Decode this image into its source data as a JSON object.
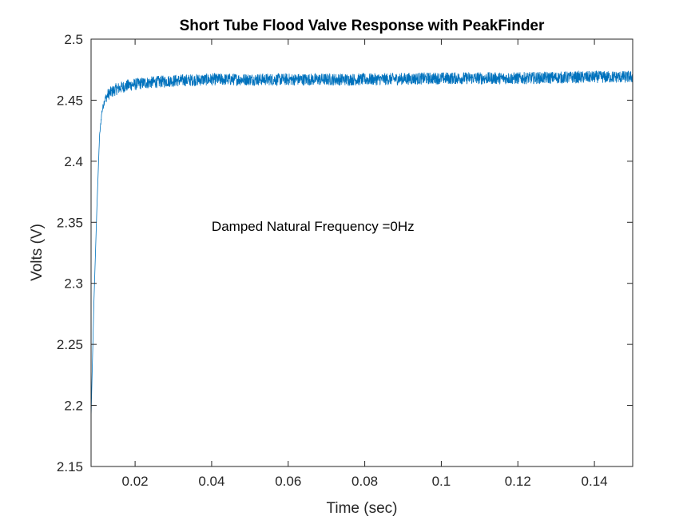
{
  "chart_data": {
    "type": "line",
    "title": "Short Tube Flood Valve Response with PeakFinder",
    "xlabel": "Time (sec)",
    "ylabel": "Volts (V)",
    "xlim": [
      0.0085,
      0.15
    ],
    "ylim": [
      2.15,
      2.5
    ],
    "xticks": [
      0.02,
      0.04,
      0.06,
      0.08,
      0.1,
      0.12,
      0.14
    ],
    "xtick_labels": [
      "0.02",
      "0.04",
      "0.06",
      "0.08",
      "0.1",
      "0.12",
      "0.14"
    ],
    "yticks": [
      2.15,
      2.2,
      2.25,
      2.3,
      2.35,
      2.4,
      2.45,
      2.5
    ],
    "ytick_labels": [
      "2.15",
      "2.2",
      "2.25",
      "2.3",
      "2.35",
      "2.4",
      "2.45",
      "2.5"
    ],
    "grid": false,
    "legend": "none",
    "annotation": {
      "text": "Damped Natural Frequency =0Hz",
      "x": 0.04,
      "y": 2.347
    },
    "series": [
      {
        "color": "#0072BD",
        "x": [
          0.0085,
          0.0092,
          0.01,
          0.0107,
          0.0113,
          0.012,
          0.013,
          0.015,
          0.018,
          0.022,
          0.03,
          0.04,
          0.06,
          0.08,
          0.1,
          0.12,
          0.14,
          0.15
        ],
        "y": [
          2.19,
          2.28,
          2.36,
          2.42,
          2.44,
          2.45,
          2.455,
          2.459,
          2.462,
          2.464,
          2.466,
          2.467,
          2.467,
          2.467,
          2.468,
          2.468,
          2.469,
          2.469
        ],
        "noise_amplitude": 0.005
      }
    ]
  }
}
